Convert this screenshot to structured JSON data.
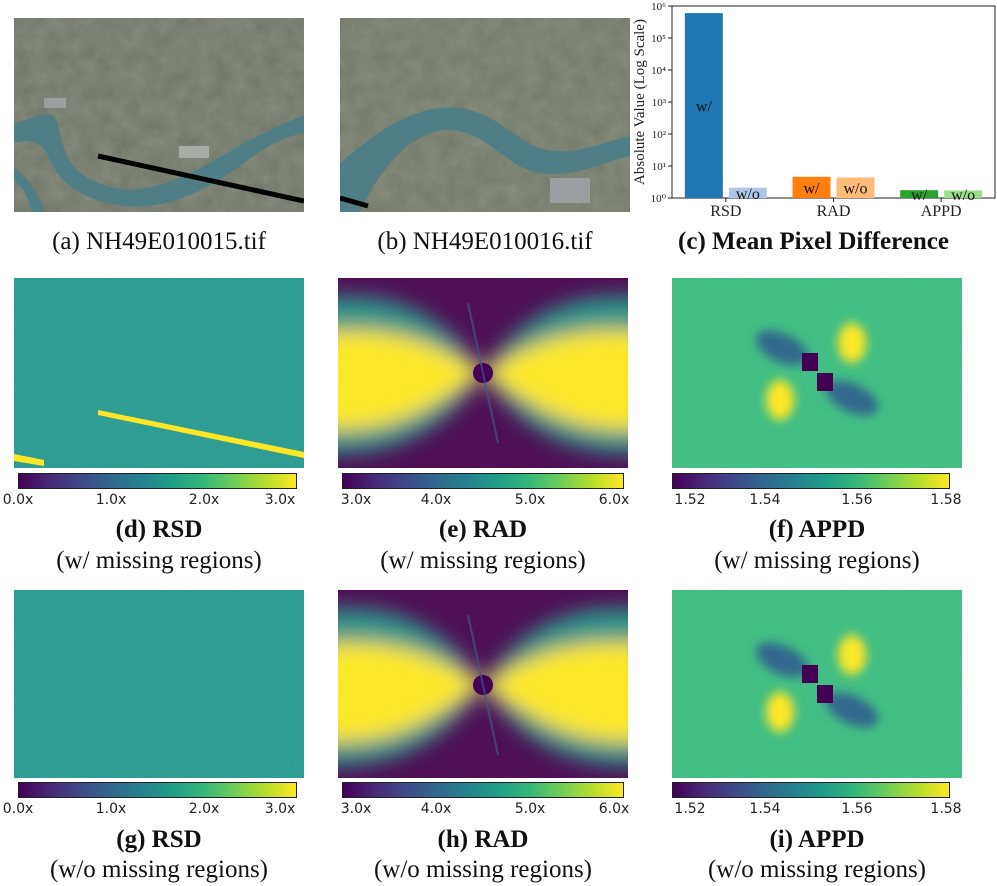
{
  "row1": {
    "panel_a_caption": "(a) NH49E010015.tif",
    "panel_b_caption": "(b) NH49E010016.tif",
    "panel_c_caption": "(c) Mean Pixel Difference"
  },
  "row2": {
    "d_caption_bold": "(d) RSD",
    "d_caption_sub": "(w/ missing regions)",
    "e_caption_bold": "(e) RAD",
    "e_caption_sub": "(w/ missing regions)",
    "f_caption_bold": "(f) APPD",
    "f_caption_sub": "(w/ missing regions)"
  },
  "row3": {
    "g_caption_bold": "(g) RSD",
    "g_caption_sub": "(w/o missing regions)",
    "h_caption_bold": "(h) RAD",
    "h_caption_sub": "(w/o missing regions)",
    "i_caption_bold": "(i) APPD",
    "i_caption_sub": "(w/o missing regions)"
  },
  "colorbars": {
    "rsd_ticks": [
      "0.0x",
      "1.0x",
      "2.0x",
      "3.0x"
    ],
    "rad_ticks": [
      "3.0x",
      "4.0x",
      "5.0x",
      "6.0x"
    ],
    "appd_ticks": [
      "1.52",
      "1.54",
      "1.56",
      "1.58"
    ]
  },
  "colors": {
    "rsd_w": "#1f77b4",
    "rsd_wo": "#aec7e8",
    "rad_w": "#ff7f0e",
    "rad_wo": "#ffbb78",
    "appd_w": "#2ca02c",
    "appd_wo": "#98df8a",
    "viridis_low": "#440154",
    "viridis_high": "#fde725"
  },
  "chart_data": {
    "type": "bar",
    "title": "(c) Mean Pixel Difference",
    "ylabel": "Absolute Value (Log Scale)",
    "xlabel": "",
    "yscale": "log",
    "ylim": [
      1,
      1000000
    ],
    "y_tick_labels": [
      "10⁰",
      "10¹",
      "10²",
      "10³",
      "10⁴",
      "10⁵",
      "10⁶"
    ],
    "categories": [
      "RSD",
      "RAD",
      "APPD"
    ],
    "series": [
      {
        "name": "w/",
        "values": [
          600000,
          4.6,
          1.75
        ]
      },
      {
        "name": "w/o",
        "values": [
          2.1,
          4.4,
          1.72
        ]
      }
    ],
    "bar_labels": [
      {
        "category": "RSD",
        "series": "w/",
        "text": "w/"
      },
      {
        "category": "RSD",
        "series": "w/o",
        "text": "w/o"
      },
      {
        "category": "RAD",
        "series": "w/",
        "text": "w/"
      },
      {
        "category": "RAD",
        "series": "w/o",
        "text": "w/o"
      },
      {
        "category": "APPD",
        "series": "w/",
        "text": "w/"
      },
      {
        "category": "APPD",
        "series": "w/o",
        "text": "w/o"
      }
    ]
  }
}
